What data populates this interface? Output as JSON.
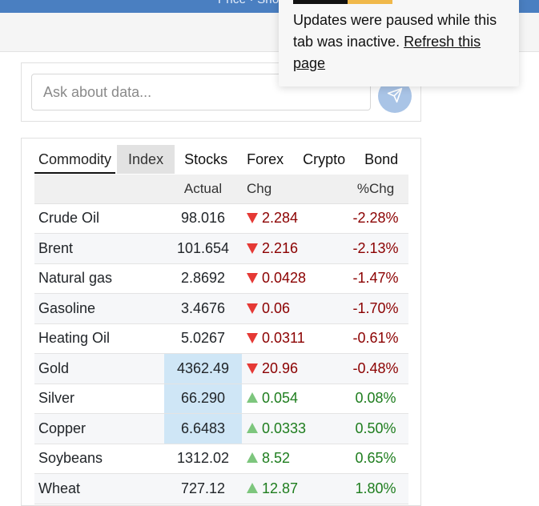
{
  "topbar": {
    "text": "Price · Shop"
  },
  "ask": {
    "placeholder": "Ask about data..."
  },
  "tabs": [
    "Commodity",
    "Index",
    "Stocks",
    "Forex",
    "Crypto",
    "Bond"
  ],
  "table": {
    "headers": {
      "name": "",
      "actual": "Actual",
      "chg": "Chg",
      "pct": "%Chg"
    },
    "rows": [
      {
        "name": "Crude Oil",
        "actual": "98.016",
        "chg": "2.284",
        "pct": "-2.28%",
        "dir": "down"
      },
      {
        "name": "Brent",
        "actual": "101.654",
        "chg": "2.216",
        "pct": "-2.13%",
        "dir": "down"
      },
      {
        "name": "Natural gas",
        "actual": "2.8692",
        "chg": "0.0428",
        "pct": "-1.47%",
        "dir": "down"
      },
      {
        "name": "Gasoline",
        "actual": "3.4676",
        "chg": "0.06",
        "pct": "-1.70%",
        "dir": "down"
      },
      {
        "name": "Heating Oil",
        "actual": "5.0267",
        "chg": "0.0311",
        "pct": "-0.61%",
        "dir": "down"
      },
      {
        "name": "Gold",
        "actual": "4362.49",
        "chg": "20.96",
        "pct": "-0.48%",
        "dir": "down"
      },
      {
        "name": "Silver",
        "actual": "66.290",
        "chg": "0.054",
        "pct": "0.08%",
        "dir": "up"
      },
      {
        "name": "Copper",
        "actual": "6.6483",
        "chg": "0.0333",
        "pct": "0.50%",
        "dir": "up"
      },
      {
        "name": "Soybeans",
        "actual": "1312.02",
        "chg": "8.52",
        "pct": "0.65%",
        "dir": "up"
      },
      {
        "name": "Wheat",
        "actual": "727.12",
        "chg": "12.87",
        "pct": "1.80%",
        "dir": "up"
      }
    ]
  },
  "toast": {
    "message": "Updates were paused while this tab was inactive.",
    "link": "Refresh this page"
  },
  "colors": {
    "down": "#8b0000",
    "up": "#1e7d1e",
    "highlight": "#cfe6f6",
    "topbar": "#4a7fc1"
  }
}
